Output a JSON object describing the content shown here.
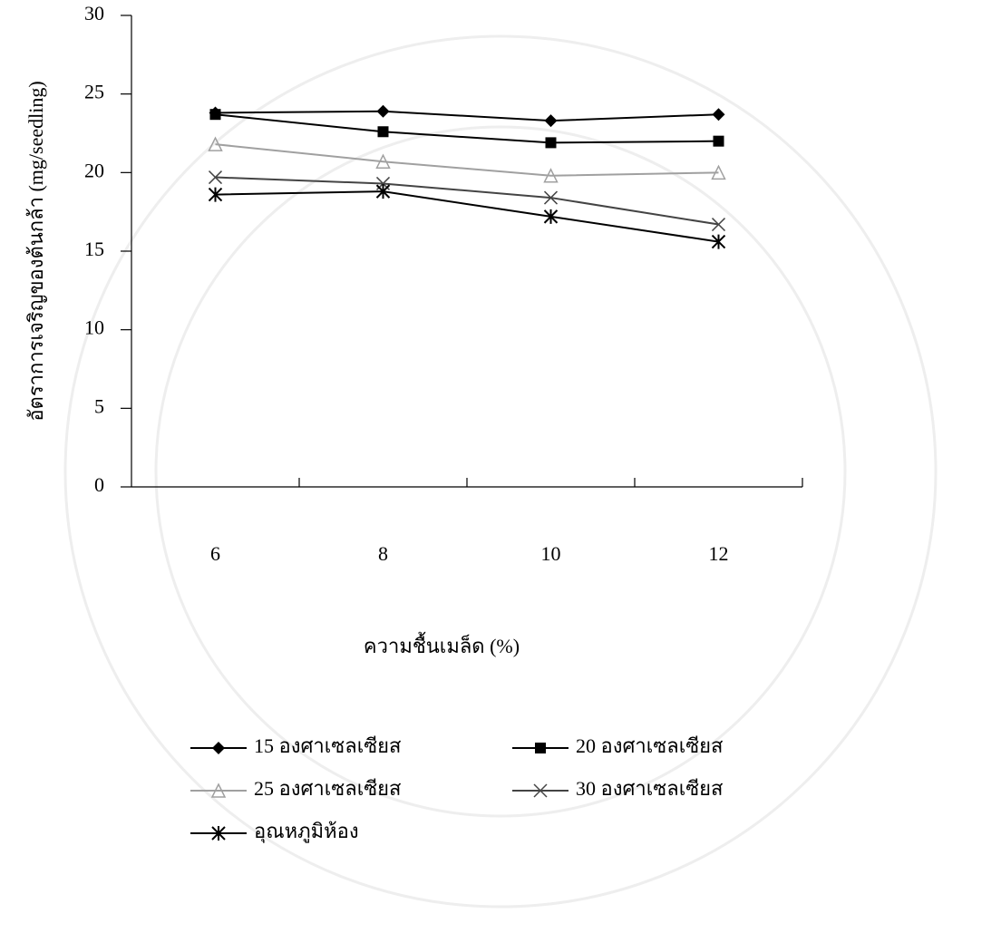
{
  "chart_data": {
    "type": "line",
    "x_label": "ความชื้นเมล็ด (%)",
    "y_label": "อัตราการเจริญของต้นกล้า (mg/seedling)",
    "categories": [
      "6",
      "8",
      "10",
      "12"
    ],
    "ylim": [
      0,
      30
    ],
    "yticks": [
      0,
      5,
      10,
      15,
      20,
      25,
      30
    ],
    "series": [
      {
        "name": "15 องศาเซลเซียส",
        "color": "#000000",
        "marker": "diamond",
        "values": [
          23.8,
          23.9,
          23.3,
          23.7
        ]
      },
      {
        "name": "20 องศาเซลเซียส",
        "color": "#000000",
        "marker": "square",
        "values": [
          23.7,
          22.6,
          21.9,
          22.0
        ]
      },
      {
        "name": "25 องศาเซลเซียส",
        "color": "#a0a0a0",
        "marker": "triangle",
        "values": [
          21.8,
          20.7,
          19.8,
          20.0
        ]
      },
      {
        "name": "30 องศาเซลเซียส",
        "color": "#444444",
        "marker": "x",
        "values": [
          19.7,
          19.3,
          18.4,
          16.7
        ]
      },
      {
        "name": "อุณหภูมิห้อง",
        "color": "#000000",
        "marker": "star",
        "values": [
          18.6,
          18.8,
          17.2,
          15.6
        ]
      }
    ]
  }
}
